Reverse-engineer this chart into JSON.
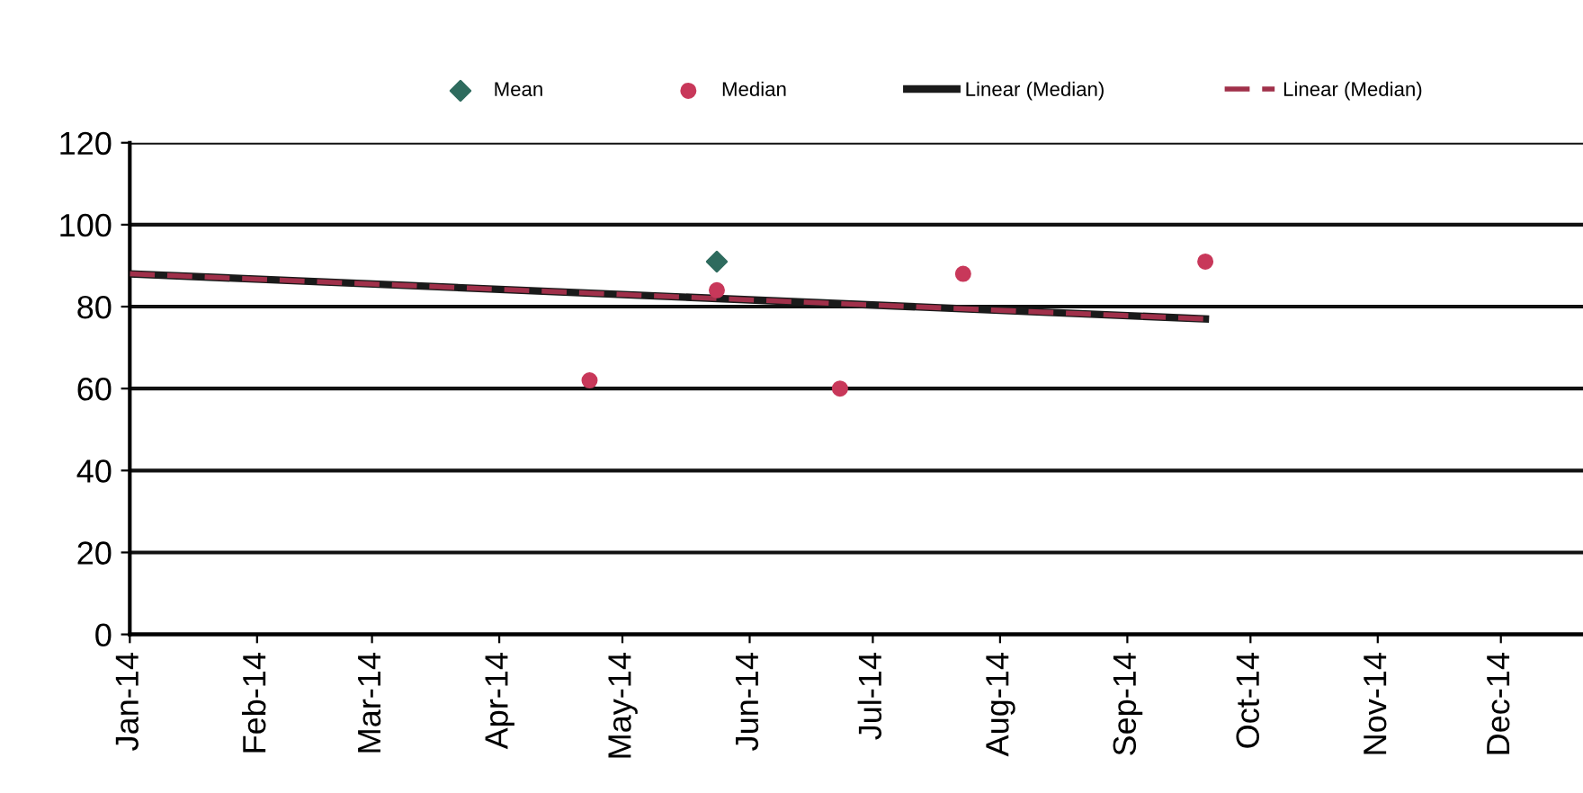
{
  "chart_data": {
    "type": "scatter",
    "series": [
      {
        "name": "Mean",
        "color": "#2e6b5e",
        "marker": "diamond",
        "x": [
          "2014-05-24"
        ],
        "values": [
          91
        ]
      },
      {
        "name": "Median",
        "color": "#c8385a",
        "marker": "circle",
        "x": [
          "2014-04-23",
          "2014-05-24",
          "2014-06-23",
          "2014-07-23",
          "2014-09-20"
        ],
        "values": [
          62,
          84,
          60,
          88,
          91
        ]
      },
      {
        "name": "Linear (Median)",
        "type": "line",
        "color": "#1a1a1a",
        "line_style": "solid",
        "x": [
          "2014-01-01",
          "2014-09-20"
        ],
        "values": [
          88,
          77
        ]
      },
      {
        "name": "Linear (Median)",
        "type": "line",
        "color": "#a0304a",
        "line_style": "dashed",
        "x": [
          "2014-01-01",
          "2014-09-20"
        ],
        "values": [
          88,
          77
        ]
      }
    ],
    "xlim": [
      "2014-01-01",
      "2014-12-21"
    ],
    "xticks": [
      {
        "value": "2014-01-01",
        "label": "Jan-14"
      },
      {
        "value": "2014-02-01",
        "label": "Feb-14"
      },
      {
        "value": "2014-03-01",
        "label": "Mar-14"
      },
      {
        "value": "2014-04-01",
        "label": "Apr-14"
      },
      {
        "value": "2014-05-01",
        "label": "May-14"
      },
      {
        "value": "2014-06-01",
        "label": "Jun-14"
      },
      {
        "value": "2014-07-01",
        "label": "Jul-14"
      },
      {
        "value": "2014-08-01",
        "label": "Aug-14"
      },
      {
        "value": "2014-09-01",
        "label": "Sep-14"
      },
      {
        "value": "2014-10-01",
        "label": "Oct-14"
      },
      {
        "value": "2014-11-01",
        "label": "Nov-14"
      },
      {
        "value": "2014-12-01",
        "label": "Dec-14"
      }
    ],
    "ylim": [
      0,
      120
    ],
    "yticks": [
      0,
      20,
      40,
      60,
      80,
      100,
      120
    ],
    "grid": "y",
    "legend": "top"
  }
}
